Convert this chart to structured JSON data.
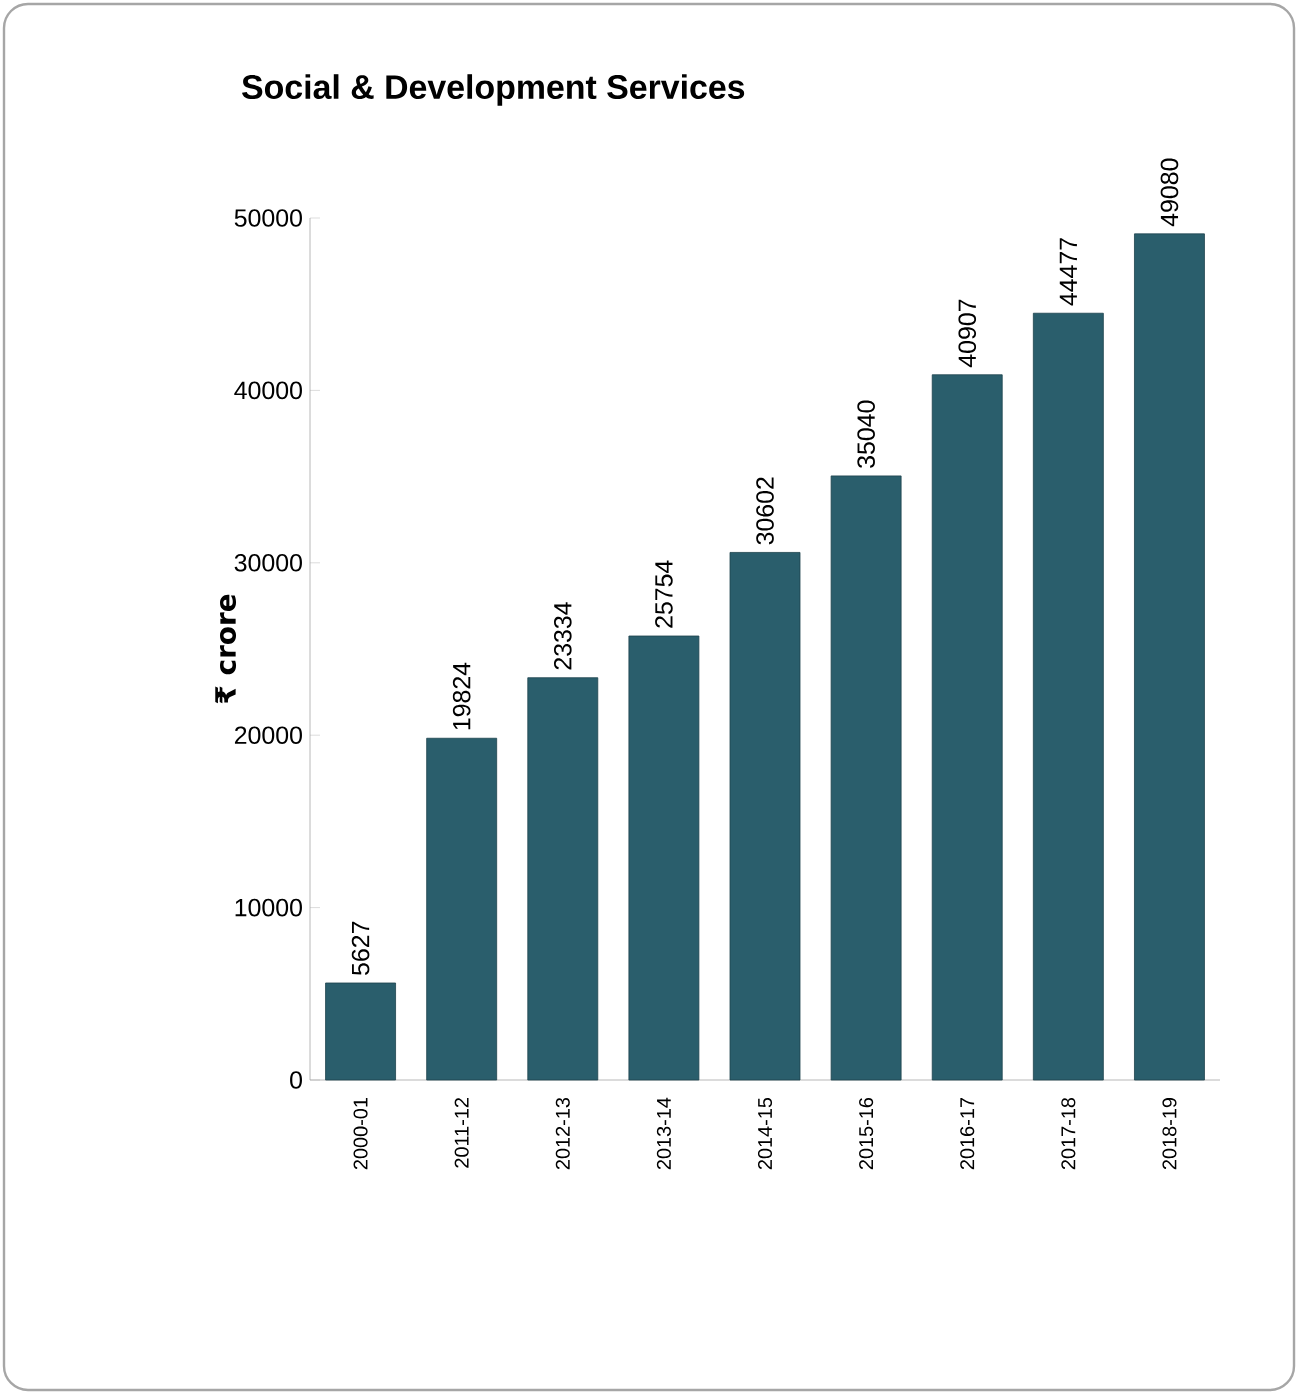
{
  "chart_data": {
    "type": "bar",
    "title": "Social & Development Services",
    "ylabel": "₹ crore",
    "categories": [
      "2000-01",
      "2011-12",
      "2012-13",
      "2013-14",
      "2014-15",
      "2015-16",
      "2016-17",
      "2017-18",
      "2018-19"
    ],
    "values": [
      5627,
      19824,
      23334,
      25754,
      30602,
      35040,
      40907,
      44477,
      49080
    ],
    "color": "#2a5e6c",
    "ylim": [
      0,
      50000
    ],
    "yticks": [
      0,
      10000,
      20000,
      30000,
      40000,
      50000
    ],
    "data_labels": true
  }
}
